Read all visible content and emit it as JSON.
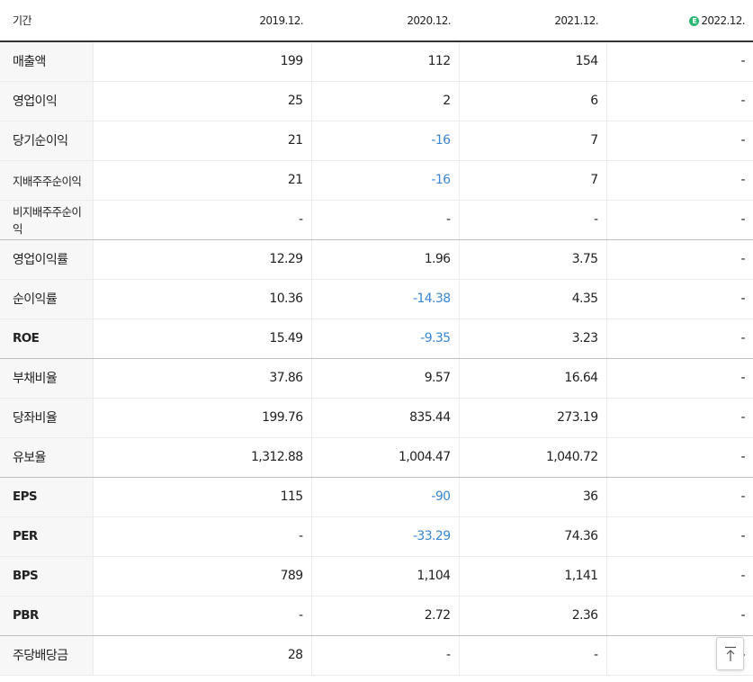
{
  "header": {
    "period_label": "기간",
    "columns": [
      {
        "label": "2019.12.",
        "estimate": false
      },
      {
        "label": "2020.12.",
        "estimate": false
      },
      {
        "label": "2021.12.",
        "estimate": false
      },
      {
        "label": "2022.12.",
        "estimate": true,
        "badge": "E"
      }
    ]
  },
  "rows": [
    {
      "label": "매출액",
      "values": [
        "199",
        "112",
        "154",
        "-"
      ]
    },
    {
      "label": "영업이익",
      "values": [
        "25",
        "2",
        "6",
        "-"
      ]
    },
    {
      "label": "당기순이익",
      "values": [
        "21",
        "-16",
        "7",
        "-"
      ]
    },
    {
      "label": "지배주주순이익",
      "values": [
        "21",
        "-16",
        "7",
        "-"
      ]
    },
    {
      "label": "비지배주주순이익",
      "values": [
        "-",
        "-",
        "-",
        "-"
      ]
    },
    {
      "label": "영업이익률",
      "values": [
        "12.29",
        "1.96",
        "3.75",
        "-"
      ]
    },
    {
      "label": "순이익률",
      "values": [
        "10.36",
        "-14.38",
        "4.35",
        "-"
      ]
    },
    {
      "label": "ROE",
      "values": [
        "15.49",
        "-9.35",
        "3.23",
        "-"
      ]
    },
    {
      "label": "부채비율",
      "values": [
        "37.86",
        "9.57",
        "16.64",
        "-"
      ]
    },
    {
      "label": "당좌비율",
      "values": [
        "199.76",
        "835.44",
        "273.19",
        "-"
      ]
    },
    {
      "label": "유보율",
      "values": [
        "1,312.88",
        "1,004.47",
        "1,040.72",
        "-"
      ]
    },
    {
      "label": "EPS",
      "values": [
        "115",
        "-90",
        "36",
        "-"
      ]
    },
    {
      "label": "PER",
      "values": [
        "-",
        "-33.29",
        "74.36",
        "-"
      ]
    },
    {
      "label": "BPS",
      "values": [
        "789",
        "1,104",
        "1,141",
        "-"
      ]
    },
    {
      "label": "PBR",
      "values": [
        "-",
        "2.72",
        "2.36",
        "-"
      ]
    },
    {
      "label": "주당배당금",
      "values": [
        "28",
        "-",
        "-",
        "-"
      ]
    }
  ],
  "colors": {
    "negative": "#3a86d1",
    "estimate_badge": "#2bb673"
  },
  "icons": {
    "scroll_top": "arrow-up-to-line-icon"
  }
}
